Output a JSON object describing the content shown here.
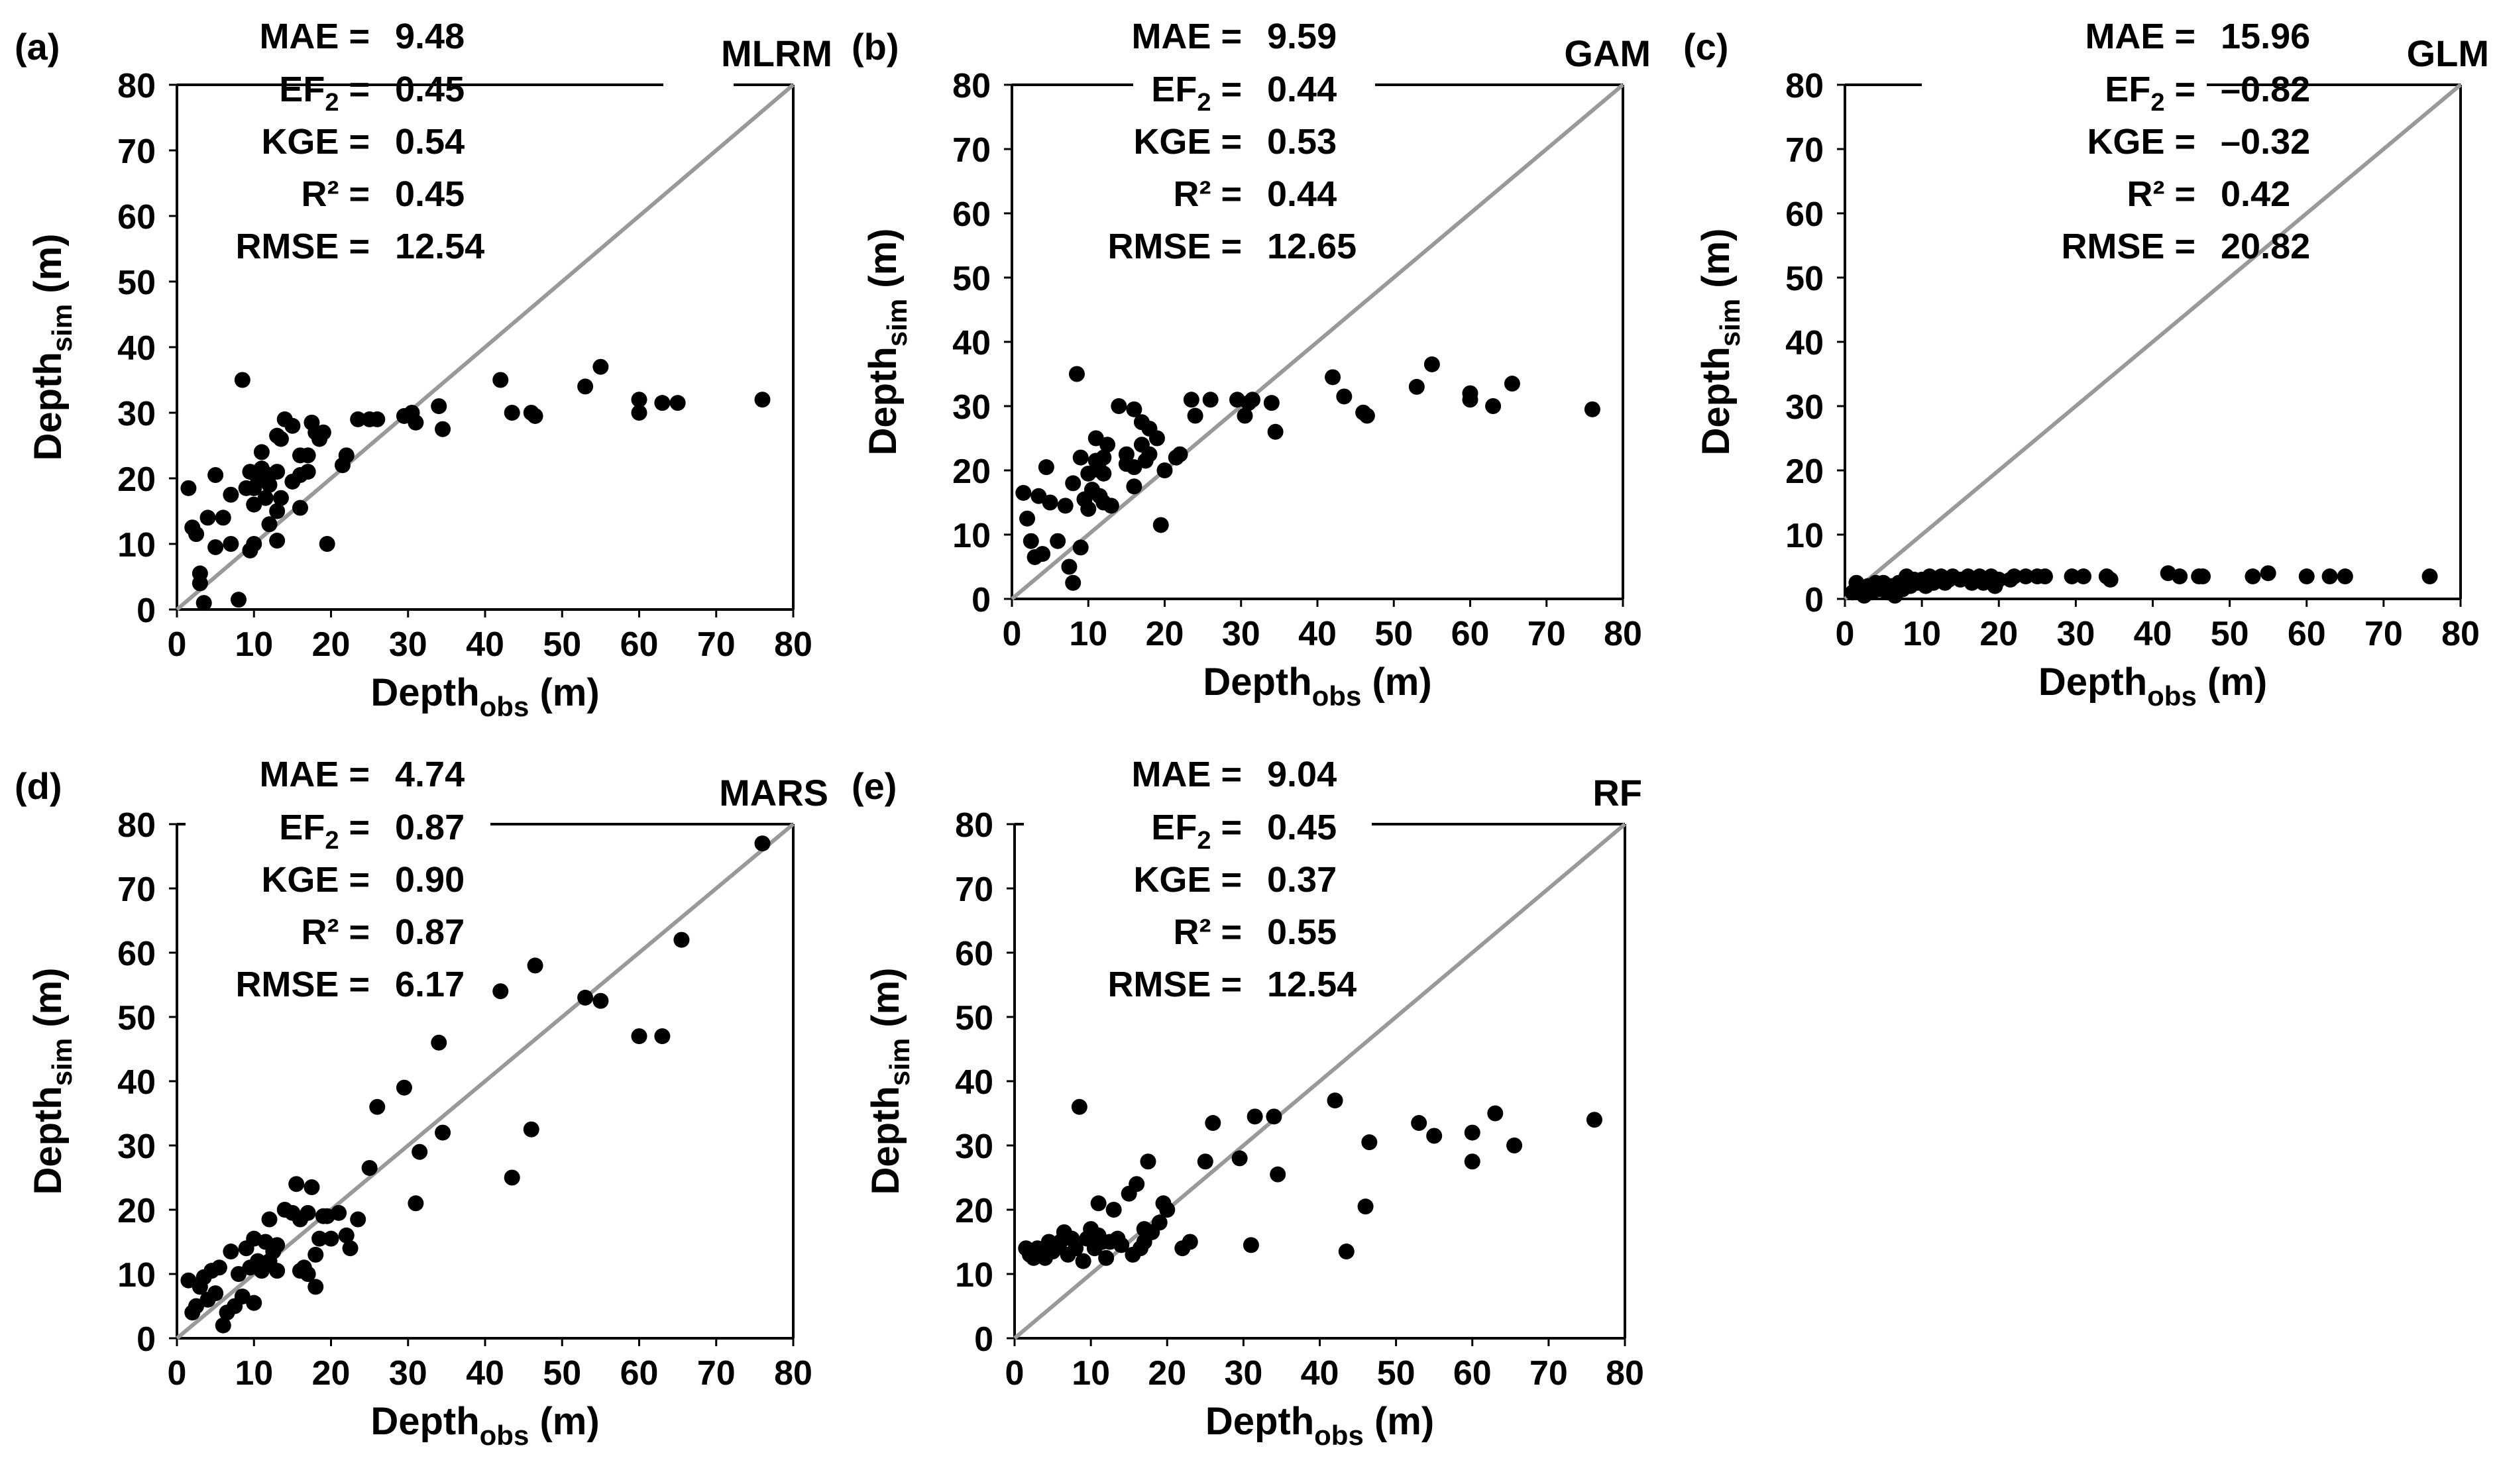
{
  "figure": {
    "sim_label": {
      "main": "Depth",
      "sub": "sim",
      "unit": "(m)"
    },
    "obs_label": {
      "main": "Depth",
      "sub": "obs",
      "unit": "(m)"
    },
    "ticks": [
      "0",
      "10",
      "20",
      "30",
      "40",
      "50",
      "60",
      "70",
      "80"
    ],
    "metric_names": {
      "mae": "MAE =",
      "ef2": "EF",
      "ef2_sub": "2",
      "ef2_tail": " =",
      "kge": "KGE =",
      "r2": "R² =",
      "rmse": "RMSE ="
    },
    "colors": {
      "points": "#000000",
      "one_to_one_line": "#999999",
      "axes": "#000000"
    }
  },
  "chart_data": [
    {
      "panel": "(a)",
      "model": "MLRM",
      "type": "scatter",
      "xlim": [
        0,
        80
      ],
      "ylim": [
        0,
        80
      ],
      "metrics": {
        "mae": "9.48",
        "ef2": "0.45",
        "kge": "0.54",
        "r2": "0.45",
        "rmse": "12.54"
      },
      "points": [
        [
          1.5,
          18.5
        ],
        [
          2,
          12.5
        ],
        [
          2.5,
          11.5
        ],
        [
          3,
          5.5
        ],
        [
          3,
          4
        ],
        [
          3.5,
          1
        ],
        [
          4,
          14
        ],
        [
          5,
          9.5
        ],
        [
          5,
          20.5
        ],
        [
          6,
          14
        ],
        [
          7,
          17.5
        ],
        [
          7,
          10
        ],
        [
          8,
          1.5
        ],
        [
          8.5,
          35
        ],
        [
          9,
          18.5
        ],
        [
          9.5,
          21
        ],
        [
          9.5,
          9
        ],
        [
          10,
          10
        ],
        [
          10,
          16
        ],
        [
          10,
          18.5
        ],
        [
          10.5,
          20
        ],
        [
          11,
          21.5
        ],
        [
          11,
          24
        ],
        [
          11.5,
          17
        ],
        [
          12,
          19
        ],
        [
          12,
          13
        ],
        [
          12,
          20.5
        ],
        [
          13,
          21
        ],
        [
          13,
          26.5
        ],
        [
          13,
          10.5
        ],
        [
          13,
          15
        ],
        [
          13.5,
          17
        ],
        [
          13.5,
          26
        ],
        [
          14,
          29
        ],
        [
          15,
          28
        ],
        [
          15,
          19.5
        ],
        [
          16,
          23.5
        ],
        [
          16,
          20.5
        ],
        [
          16,
          15.5
        ],
        [
          17,
          23.5
        ],
        [
          17,
          21
        ],
        [
          17.5,
          28.5
        ],
        [
          18,
          27
        ],
        [
          18.5,
          26
        ],
        [
          19,
          27
        ],
        [
          19.5,
          10
        ],
        [
          21.5,
          22
        ],
        [
          22,
          23.5
        ],
        [
          23.5,
          29
        ],
        [
          25,
          29
        ],
        [
          26,
          29
        ],
        [
          29.5,
          29.5
        ],
        [
          30.5,
          30
        ],
        [
          31,
          28.5
        ],
        [
          34,
          31
        ],
        [
          34.5,
          27.5
        ],
        [
          42,
          35
        ],
        [
          43.5,
          30
        ],
        [
          46,
          30
        ],
        [
          46.5,
          29.5
        ],
        [
          53,
          34
        ],
        [
          55,
          37
        ],
        [
          60,
          32
        ],
        [
          60,
          30
        ],
        [
          63,
          31.5
        ],
        [
          65,
          31.5
        ],
        [
          76,
          32
        ]
      ]
    },
    {
      "panel": "(b)",
      "model": "GAM",
      "type": "scatter",
      "xlim": [
        0,
        80
      ],
      "ylim": [
        0,
        80
      ],
      "metrics": {
        "mae": "9.59",
        "ef2": "0.44",
        "kge": "0.53",
        "r2": "0.44",
        "rmse": "12.65"
      },
      "points": [
        [
          1.5,
          16.5
        ],
        [
          2,
          12.5
        ],
        [
          2.5,
          9
        ],
        [
          3,
          6.5
        ],
        [
          3.5,
          16
        ],
        [
          4,
          7
        ],
        [
          4.5,
          20.5
        ],
        [
          5,
          15
        ],
        [
          6,
          9
        ],
        [
          7,
          14.5
        ],
        [
          7.5,
          5
        ],
        [
          8,
          18
        ],
        [
          8,
          2.5
        ],
        [
          8.5,
          35
        ],
        [
          9,
          22
        ],
        [
          9,
          8
        ],
        [
          9.5,
          15.5
        ],
        [
          10,
          19.5
        ],
        [
          10,
          14
        ],
        [
          10.5,
          17
        ],
        [
          11,
          21.5
        ],
        [
          11,
          25
        ],
        [
          11.5,
          20
        ],
        [
          11.5,
          16
        ],
        [
          12,
          19.5
        ],
        [
          12,
          22
        ],
        [
          12,
          15
        ],
        [
          12.5,
          24
        ],
        [
          13,
          14.5
        ],
        [
          14,
          30
        ],
        [
          15,
          22.5
        ],
        [
          15,
          21
        ],
        [
          16,
          20.5
        ],
        [
          16,
          29.5
        ],
        [
          16,
          17.5
        ],
        [
          17,
          27.5
        ],
        [
          17,
          24
        ],
        [
          17.5,
          21.5
        ],
        [
          18,
          26.5
        ],
        [
          18,
          22.5
        ],
        [
          19,
          25
        ],
        [
          19.5,
          11.5
        ],
        [
          20,
          20
        ],
        [
          21.5,
          22
        ],
        [
          22,
          22.5
        ],
        [
          23.5,
          31
        ],
        [
          24,
          28.5
        ],
        [
          26,
          31
        ],
        [
          29.5,
          31
        ],
        [
          30.5,
          28.5
        ],
        [
          31,
          30.5
        ],
        [
          31.5,
          31
        ],
        [
          34,
          30.5
        ],
        [
          34.5,
          26
        ],
        [
          42,
          34.5
        ],
        [
          43.5,
          31.5
        ],
        [
          46,
          29
        ],
        [
          46.5,
          28.5
        ],
        [
          53,
          33
        ],
        [
          55,
          36.5
        ],
        [
          60,
          32
        ],
        [
          60,
          31
        ],
        [
          63,
          30
        ],
        [
          65.5,
          33.5
        ],
        [
          76,
          29.5
        ]
      ]
    },
    {
      "panel": "(c)",
      "model": "GLM",
      "type": "scatter",
      "xlim": [
        0,
        80
      ],
      "ylim": [
        0,
        80
      ],
      "metrics": {
        "mae": "15.96",
        "ef2": "–0.82",
        "kge": "–0.32",
        "r2": "0.42",
        "rmse": "20.82"
      },
      "points": [
        [
          1,
          1
        ],
        [
          1.5,
          2.5
        ],
        [
          2,
          1.5
        ],
        [
          2.5,
          0.5
        ],
        [
          3,
          2
        ],
        [
          3.5,
          1
        ],
        [
          4,
          2.5
        ],
        [
          4.5,
          1.5
        ],
        [
          5,
          2.5
        ],
        [
          5.5,
          1
        ],
        [
          6,
          2
        ],
        [
          6.5,
          0.5
        ],
        [
          7,
          2.5
        ],
        [
          7.5,
          1.5
        ],
        [
          8,
          3.5
        ],
        [
          8.5,
          2
        ],
        [
          9,
          3
        ],
        [
          9.5,
          2.5
        ],
        [
          10,
          3
        ],
        [
          10.5,
          2
        ],
        [
          11,
          3.5
        ],
        [
          11.5,
          2.5
        ],
        [
          12,
          3
        ],
        [
          12.5,
          3.5
        ],
        [
          13,
          2.5
        ],
        [
          13.5,
          3
        ],
        [
          14,
          3.5
        ],
        [
          15,
          3
        ],
        [
          16,
          3.5
        ],
        [
          16.5,
          2.5
        ],
        [
          17,
          3
        ],
        [
          17.5,
          3.5
        ],
        [
          18,
          2.5
        ],
        [
          18.5,
          3
        ],
        [
          19,
          3.5
        ],
        [
          19.5,
          2
        ],
        [
          20,
          3
        ],
        [
          21.5,
          3
        ],
        [
          22,
          3.5
        ],
        [
          23.5,
          3.5
        ],
        [
          25,
          3.5
        ],
        [
          26,
          3.5
        ],
        [
          29.5,
          3.5
        ],
        [
          31,
          3.5
        ],
        [
          34,
          3.5
        ],
        [
          34.5,
          3
        ],
        [
          42,
          4
        ],
        [
          43.5,
          3.5
        ],
        [
          46,
          3.5
        ],
        [
          46.5,
          3.5
        ],
        [
          53,
          3.5
        ],
        [
          55,
          4
        ],
        [
          60,
          3.5
        ],
        [
          63,
          3.5
        ],
        [
          65,
          3.5
        ],
        [
          76,
          3.5
        ]
      ]
    },
    {
      "panel": "(d)",
      "model": "MARS",
      "type": "scatter",
      "xlim": [
        0,
        80
      ],
      "ylim": [
        0,
        80
      ],
      "metrics": {
        "mae": "4.74",
        "ef2": "0.87",
        "kge": "0.90",
        "r2": "0.87",
        "rmse": "6.17"
      },
      "points": [
        [
          1.5,
          9
        ],
        [
          2,
          4
        ],
        [
          2.5,
          5
        ],
        [
          3,
          8
        ],
        [
          3.5,
          9.5
        ],
        [
          4,
          6
        ],
        [
          4.5,
          10.5
        ],
        [
          5,
          7
        ],
        [
          5.5,
          11
        ],
        [
          6,
          2
        ],
        [
          6.5,
          4
        ],
        [
          7,
          13.5
        ],
        [
          7.5,
          5
        ],
        [
          8,
          10
        ],
        [
          8.5,
          6.5
        ],
        [
          9,
          14
        ],
        [
          9.5,
          11
        ],
        [
          10,
          15.5
        ],
        [
          10,
          5.5
        ],
        [
          10.5,
          12
        ],
        [
          11,
          10.5
        ],
        [
          11.5,
          15
        ],
        [
          12,
          12
        ],
        [
          12,
          18.5
        ],
        [
          12.5,
          13.5
        ],
        [
          13,
          10.5
        ],
        [
          13,
          14.5
        ],
        [
          14,
          20
        ],
        [
          15,
          19.5
        ],
        [
          15.5,
          24
        ],
        [
          16,
          18.5
        ],
        [
          16,
          10.5
        ],
        [
          16.5,
          11
        ],
        [
          17,
          19.5
        ],
        [
          17,
          10
        ],
        [
          17.5,
          23.5
        ],
        [
          18,
          13
        ],
        [
          18,
          8
        ],
        [
          18.5,
          15.5
        ],
        [
          19,
          19
        ],
        [
          19.5,
          19
        ],
        [
          20,
          15.5
        ],
        [
          21,
          19.5
        ],
        [
          22,
          16
        ],
        [
          22.5,
          14
        ],
        [
          23.5,
          18.5
        ],
        [
          25,
          26.5
        ],
        [
          26,
          36
        ],
        [
          29.5,
          39
        ],
        [
          31,
          21
        ],
        [
          31.5,
          29
        ],
        [
          34,
          46
        ],
        [
          34.5,
          32
        ],
        [
          42,
          54
        ],
        [
          43.5,
          25
        ],
        [
          46,
          32.5
        ],
        [
          46.5,
          58
        ],
        [
          53,
          53
        ],
        [
          55,
          52.5
        ],
        [
          60,
          47
        ],
        [
          63,
          47
        ],
        [
          65.5,
          62
        ],
        [
          76,
          77
        ]
      ]
    },
    {
      "panel": "(e)",
      "model": "RF",
      "type": "scatter",
      "xlim": [
        0,
        80
      ],
      "ylim": [
        0,
        80
      ],
      "metrics": {
        "mae": "9.04",
        "ef2": "0.45",
        "kge": "0.37",
        "r2": "0.55",
        "rmse": "12.54"
      },
      "points": [
        [
          1.5,
          14
        ],
        [
          2,
          13
        ],
        [
          2.5,
          12.5
        ],
        [
          3,
          14
        ],
        [
          3.5,
          13.5
        ],
        [
          4,
          12.5
        ],
        [
          4.5,
          15
        ],
        [
          5,
          13.5
        ],
        [
          5.5,
          14.5
        ],
        [
          6,
          15
        ],
        [
          6.5,
          16.5
        ],
        [
          7,
          13
        ],
        [
          7.5,
          15.5
        ],
        [
          8,
          14
        ],
        [
          8.5,
          36
        ],
        [
          9,
          12
        ],
        [
          9.5,
          15.5
        ],
        [
          10,
          17
        ],
        [
          10.5,
          14
        ],
        [
          11,
          16
        ],
        [
          11,
          21
        ],
        [
          11.5,
          15
        ],
        [
          12,
          12.5
        ],
        [
          12.5,
          15
        ],
        [
          13,
          20
        ],
        [
          13.5,
          15.5
        ],
        [
          14,
          14.5
        ],
        [
          15,
          22.5
        ],
        [
          15.5,
          13
        ],
        [
          16,
          24
        ],
        [
          16.5,
          14
        ],
        [
          17,
          17
        ],
        [
          17,
          15
        ],
        [
          17.5,
          27.5
        ],
        [
          18,
          16.5
        ],
        [
          19,
          18
        ],
        [
          19.5,
          21
        ],
        [
          20,
          20
        ],
        [
          22,
          14
        ],
        [
          23,
          15
        ],
        [
          25,
          27.5
        ],
        [
          26,
          33.5
        ],
        [
          29.5,
          28
        ],
        [
          31,
          14.5
        ],
        [
          31.5,
          34.5
        ],
        [
          34,
          34.5
        ],
        [
          34.5,
          25.5
        ],
        [
          42,
          37
        ],
        [
          43.5,
          13.5
        ],
        [
          46,
          20.5
        ],
        [
          46.5,
          30.5
        ],
        [
          53,
          33.5
        ],
        [
          55,
          31.5
        ],
        [
          60,
          27.5
        ],
        [
          60,
          32
        ],
        [
          63,
          35
        ],
        [
          65.5,
          30
        ],
        [
          76,
          34
        ]
      ]
    }
  ]
}
